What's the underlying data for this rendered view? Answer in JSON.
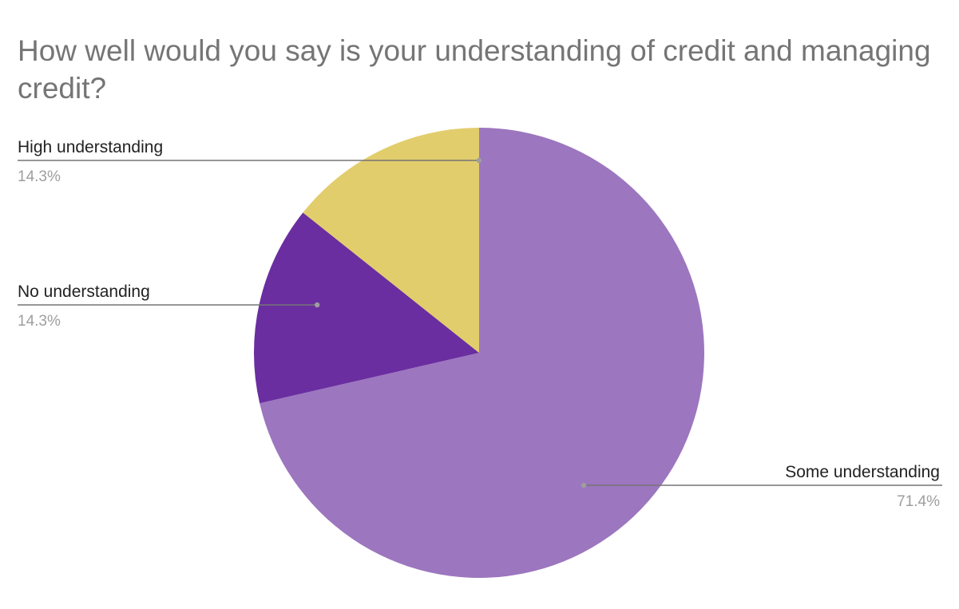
{
  "chart_data": {
    "type": "pie",
    "title": "How well would you say is your understanding of credit and managing credit?",
    "slices": [
      {
        "label": "Some understanding",
        "value": 71.4,
        "percent_label": "71.4%",
        "color": "#9c76bf"
      },
      {
        "label": "No understanding",
        "value": 14.3,
        "percent_label": "14.3%",
        "color": "#6a2ea0"
      },
      {
        "label": "High understanding",
        "value": 14.3,
        "percent_label": "14.3%",
        "color": "#e2cd6d"
      }
    ],
    "start_angle_deg": 0,
    "direction": "clockwise",
    "labels": "outside with leader lines"
  }
}
